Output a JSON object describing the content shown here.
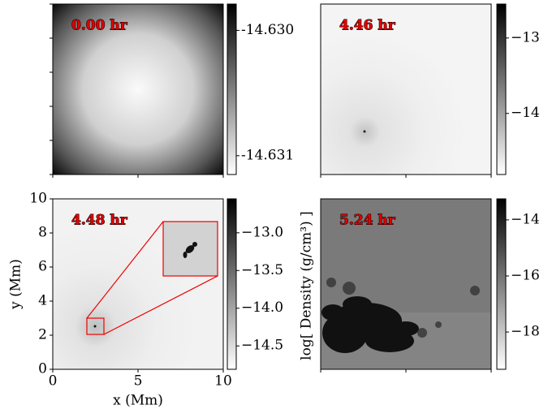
{
  "chart_data": [
    {
      "type": "heatmap",
      "label": "0.00 hr",
      "clim": [
        -14.63115,
        -14.62979
      ],
      "cticks": [
        {
          "value": -14.63,
          "label": "-14.630"
        },
        {
          "value": -14.631,
          "label": "-14.631"
        }
      ]
    },
    {
      "type": "heatmap",
      "label": "4.46 hr",
      "clim": [
        -14.81,
        -12.55
      ],
      "cticks": [
        {
          "value": -13,
          "label": "−13"
        },
        {
          "value": -14,
          "label": "−14"
        }
      ]
    },
    {
      "type": "heatmap",
      "label": "4.48 hr",
      "clim": [
        -14.81,
        -12.55
      ],
      "cticks": [
        {
          "value": -13.0,
          "label": "−13.0"
        },
        {
          "value": -13.5,
          "label": "−13.5"
        },
        {
          "value": -14.0,
          "label": "−14.0"
        },
        {
          "value": -14.5,
          "label": "−14.5"
        }
      ],
      "xlabel": "x (Mm)",
      "ylabel": "y (Mm)",
      "xlim": [
        0,
        10
      ],
      "ylim": [
        0,
        10
      ],
      "xticks": [
        0,
        5,
        10
      ],
      "yticks": [
        0,
        2,
        4,
        6,
        8,
        10
      ],
      "colorbar_label": "log[ Density (g/cm³) ]"
    },
    {
      "type": "heatmap",
      "label": "5.24 hr",
      "clim": [
        -19.33,
        -13.25
      ],
      "cticks": [
        {
          "value": -14,
          "label": "−14"
        },
        {
          "value": -16,
          "label": "−16"
        },
        {
          "value": -18,
          "label": "−18"
        }
      ]
    }
  ]
}
